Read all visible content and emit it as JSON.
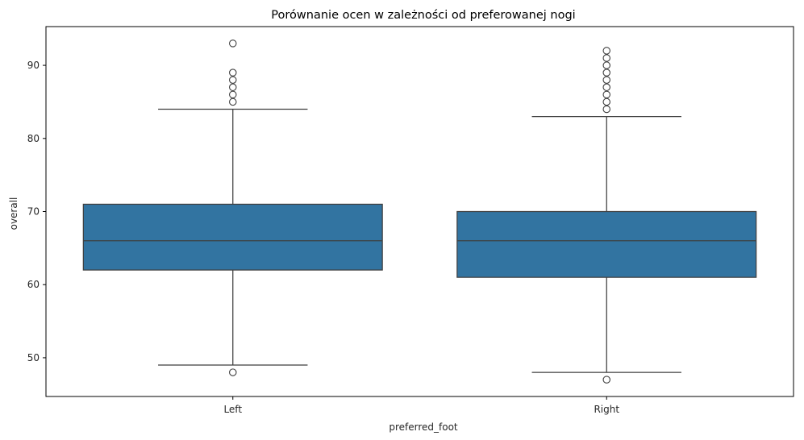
{
  "chart_data": {
    "type": "box",
    "title": "Porównanie ocen w zależności od preferowanej nogi",
    "xlabel": "preferred_foot",
    "ylabel": "overall",
    "ylim": [
      44.7,
      95.3
    ],
    "yticks": [
      "50",
      "60",
      "70",
      "80",
      "90"
    ],
    "grid": false,
    "colors": {
      "box": "#3274a1",
      "line": "#3f3f3f",
      "axis": "#000000"
    },
    "categories": [
      "Left",
      "Right"
    ],
    "boxes": [
      {
        "category": "Left",
        "whisker_low": 49,
        "q1": 62,
        "median": 66,
        "q3": 71,
        "whisker_high": 84,
        "outliers": [
          48,
          85,
          86,
          87,
          88,
          89,
          93
        ]
      },
      {
        "category": "Right",
        "whisker_low": 48,
        "q1": 61,
        "median": 66,
        "q3": 70,
        "whisker_high": 83,
        "outliers": [
          47,
          84,
          85,
          86,
          87,
          88,
          89,
          90,
          91,
          92
        ]
      }
    ]
  }
}
